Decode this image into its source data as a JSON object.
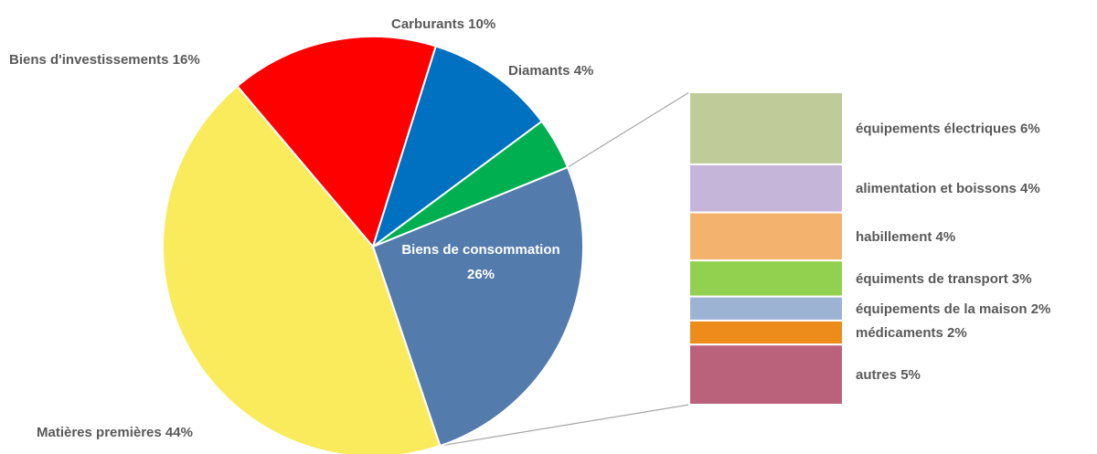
{
  "chart_data": {
    "type": "pie",
    "slices": [
      {
        "label": "Biens de consommation",
        "value": 26,
        "value_text": "26%",
        "color": "#537BAC",
        "exploded_to_bar": true
      },
      {
        "label": "Matières premières",
        "value": 44,
        "value_text": "Matières premières 44%",
        "color": "#F9EB5C"
      },
      {
        "label": "Biens d'investissements",
        "value": 16,
        "value_text": "Biens d'investissements 16%",
        "color": "#FF0000"
      },
      {
        "label": "Carburants",
        "value": 10,
        "value_text": "Carburants 10%",
        "color": "#0070C0"
      },
      {
        "label": "Diamants",
        "value": 4,
        "value_text": "Diamants 4%",
        "color": "#00B050"
      }
    ],
    "breakdown": {
      "of": "Biens de consommation",
      "items": [
        {
          "label": "équipements électriques 6%",
          "value": 6,
          "color": "#BFCB98"
        },
        {
          "label": "alimentation et boissons 4%",
          "value": 4,
          "color": "#C5B5D8"
        },
        {
          "label": "habillement  4%",
          "value": 4,
          "color": "#F3B36F"
        },
        {
          "label": "équiments de transport 3%",
          "value": 3,
          "color": "#92D050"
        },
        {
          "label": "équipements de la maison 2%",
          "value": 2,
          "color": "#9DB3D3"
        },
        {
          "label": "médicaments 2%",
          "value": 2,
          "color": "#ED8B1B"
        },
        {
          "label": "autres 5%",
          "value": 5,
          "color": "#BA617C"
        }
      ]
    }
  }
}
